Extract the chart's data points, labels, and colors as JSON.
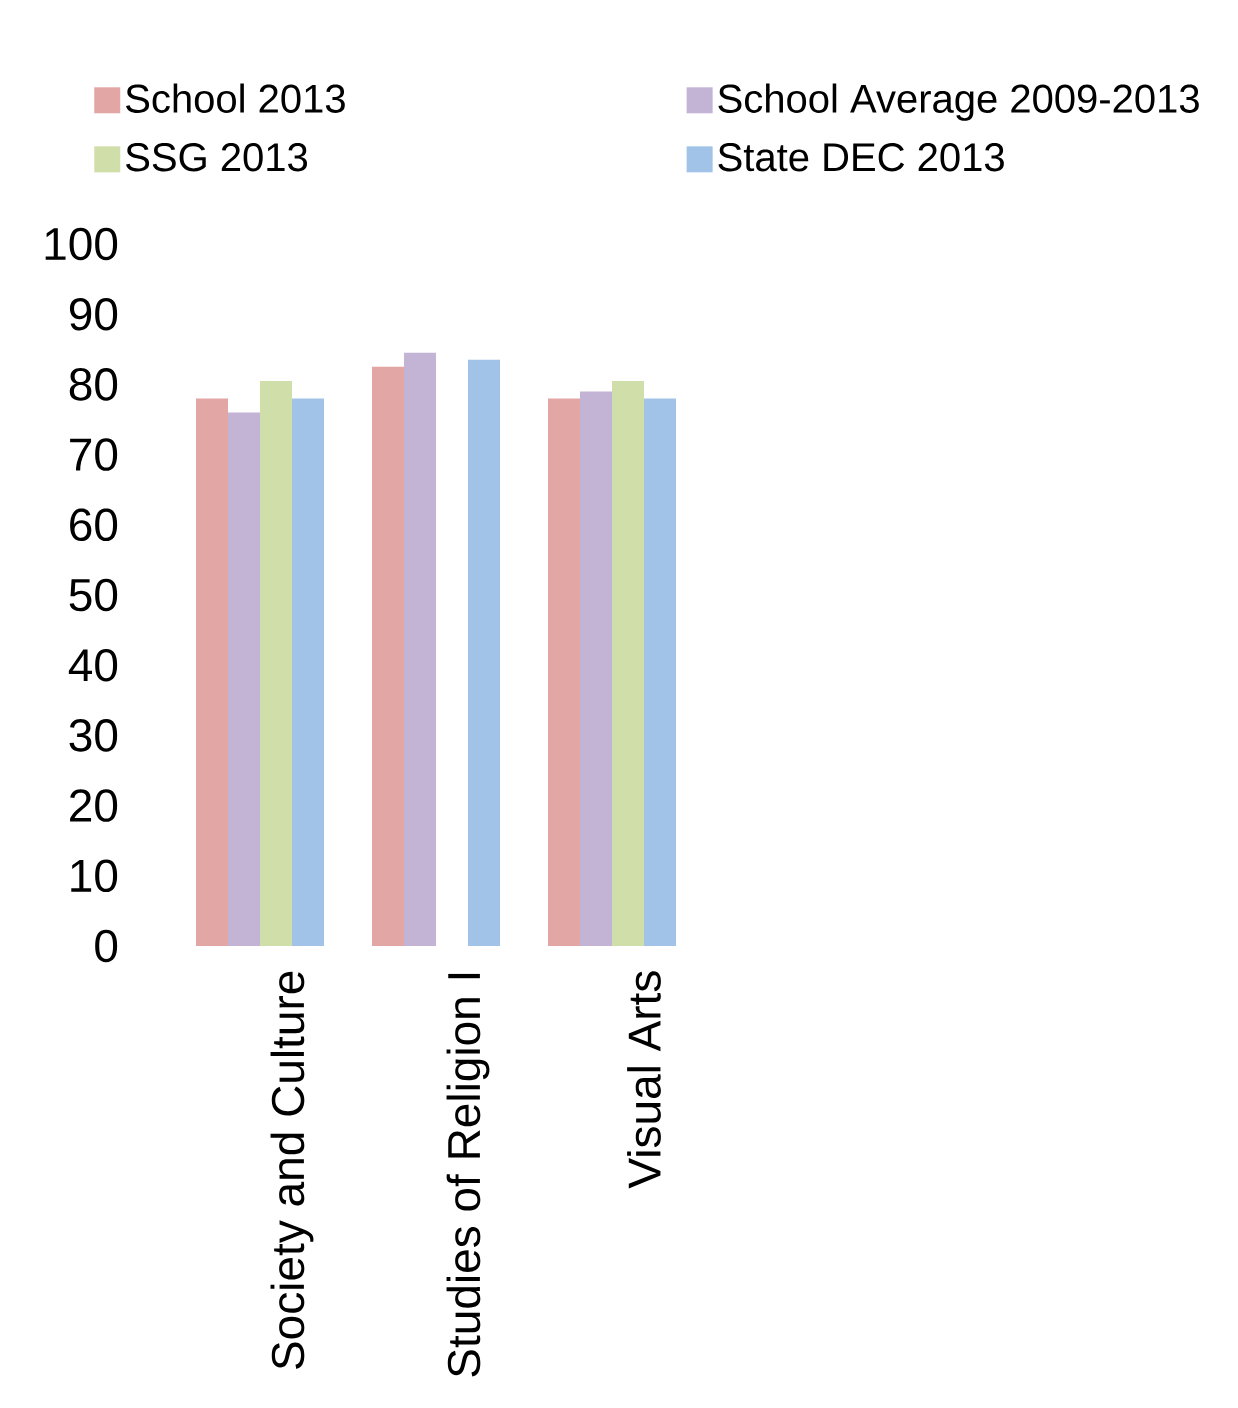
{
  "chart_data": {
    "type": "bar",
    "categories": [
      "Society and Culture",
      "Studies of Religion I",
      "Visual Arts"
    ],
    "series": [
      {
        "name": "School 2013",
        "color": "#e2a6a5",
        "values": [
          78,
          82.5,
          78
        ]
      },
      {
        "name": "School Average 2009-2013",
        "color": "#c3b3d5",
        "values": [
          76,
          84.5,
          79
        ]
      },
      {
        "name": "SSG 2013",
        "color": "#d0deaa",
        "values": [
          80.5,
          null,
          80.5
        ]
      },
      {
        "name": "State DEC 2013",
        "color": "#a1c3e8",
        "values": [
          78,
          83.5,
          78
        ]
      }
    ],
    "ylim": [
      0,
      100
    ],
    "yticks": [
      0,
      10,
      20,
      30,
      40,
      50,
      60,
      70,
      80,
      90,
      100
    ],
    "legend": "top"
  }
}
